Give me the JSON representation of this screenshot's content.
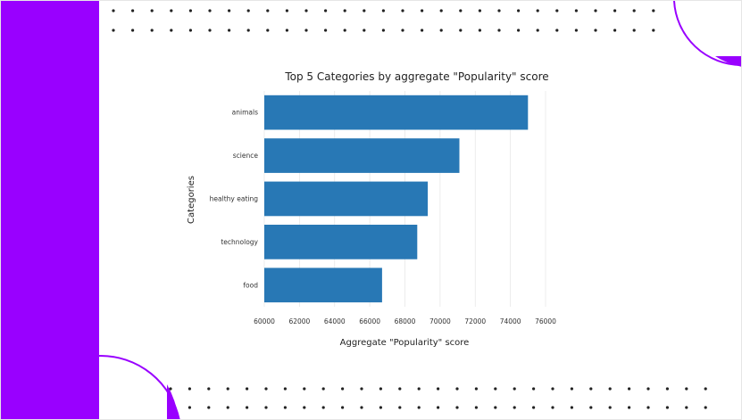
{
  "colors": {
    "accent": "#9900ff",
    "bar": "#2878b5",
    "dots": "#222222",
    "grid": "#e8e8e8"
  },
  "chart_data": {
    "type": "bar",
    "orientation": "horizontal",
    "title": "Top 5 Categories by aggregate \"Popularity\" score",
    "xlabel": "Aggregate \"Popularity\" score",
    "ylabel": "Categories",
    "categories": [
      "animals",
      "science",
      "healthy eating",
      "technology",
      "food"
    ],
    "values": [
      75000,
      71100,
      69300,
      68700,
      66700
    ],
    "xlim": [
      60000,
      76000
    ],
    "xticks": [
      60000,
      62000,
      64000,
      66000,
      68000,
      70000,
      72000,
      74000,
      76000
    ],
    "grid": "vertical",
    "legend": "none"
  }
}
